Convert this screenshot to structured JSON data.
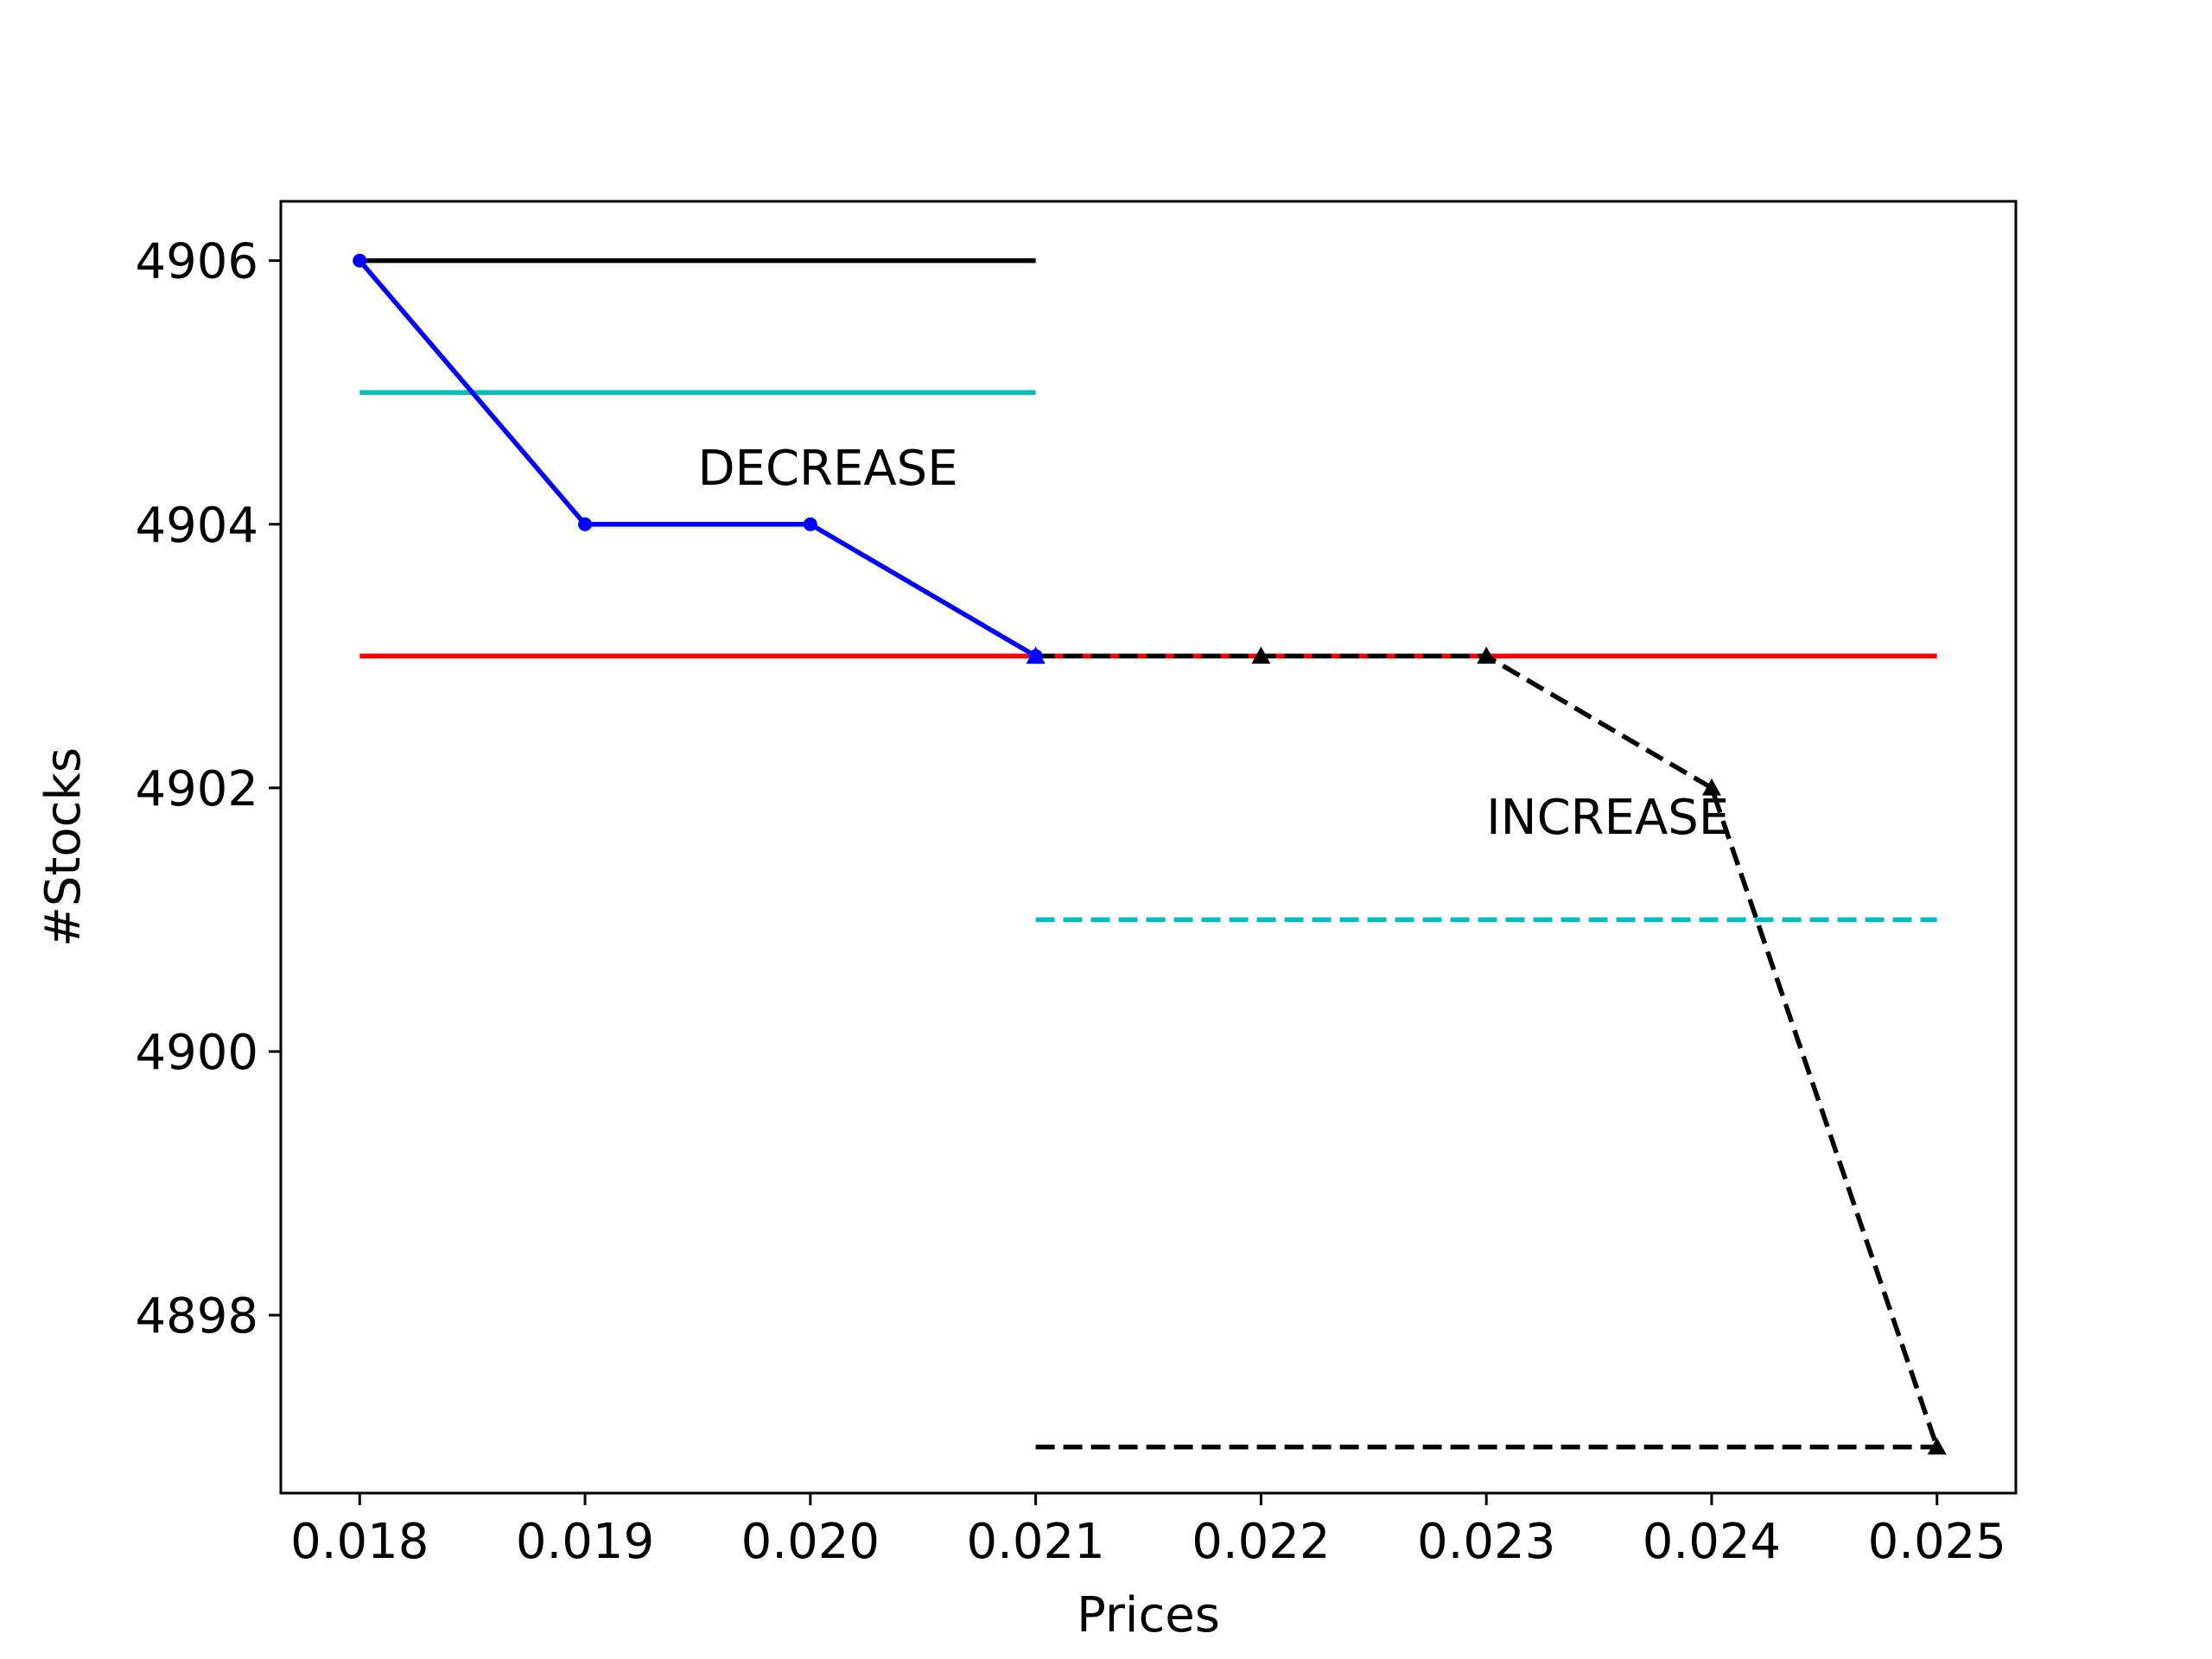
{
  "chart_data": {
    "type": "line",
    "xlabel": "Prices",
    "ylabel": "#Stocks",
    "xlim": [
      0.01765,
      0.02535
    ],
    "ylim": [
      4896.65,
      4906.45
    ],
    "x_ticks": [
      {
        "value": 0.018,
        "label": "0.018"
      },
      {
        "value": 0.019,
        "label": "0.019"
      },
      {
        "value": 0.02,
        "label": "0.020"
      },
      {
        "value": 0.021,
        "label": "0.021"
      },
      {
        "value": 0.022,
        "label": "0.022"
      },
      {
        "value": 0.023,
        "label": "0.023"
      },
      {
        "value": 0.024,
        "label": "0.024"
      },
      {
        "value": 0.025,
        "label": "0.025"
      }
    ],
    "y_ticks": [
      {
        "value": 4898,
        "label": "4898"
      },
      {
        "value": 4900,
        "label": "4900"
      },
      {
        "value": 4902,
        "label": "4902"
      },
      {
        "value": 4904,
        "label": "4904"
      },
      {
        "value": 4906,
        "label": "4906"
      }
    ],
    "grid": false,
    "series": [
      {
        "x": [
          0.018,
          0.021
        ],
        "y": [
          4906,
          4906
        ],
        "color": "#000000",
        "dash": "solid",
        "marker": "none"
      },
      {
        "x": [
          0.018,
          0.021
        ],
        "y": [
          4905,
          4905
        ],
        "color": "#00bfbf",
        "dash": "solid",
        "marker": "none"
      },
      {
        "x": [
          0.018,
          0.025
        ],
        "y": [
          4903,
          4903
        ],
        "color": "#ff0000",
        "dash": "solid",
        "marker": "none"
      },
      {
        "x": [
          0.018,
          0.019,
          0.02,
          0.021
        ],
        "y": [
          4906,
          4904,
          4904,
          4903
        ],
        "color": "#0000ff",
        "dash": "solid",
        "marker": "dot"
      },
      {
        "x": [
          0.021,
          0.025
        ],
        "y": [
          4901,
          4901
        ],
        "color": "#00bfbf",
        "dash": "dashed",
        "marker": "none"
      },
      {
        "x": [
          0.021,
          0.025
        ],
        "y": [
          4897,
          4897
        ],
        "color": "#000000",
        "dash": "dashed",
        "marker": "none"
      },
      {
        "x": [
          0.021,
          0.022,
          0.023,
          0.024,
          0.025
        ],
        "y": [
          4903,
          4903,
          4903,
          4902,
          4897
        ],
        "color": "#000000",
        "dash": "dashed",
        "marker": "triangle"
      }
    ],
    "markers_extra": [
      {
        "x": 0.021,
        "y": 4903,
        "color": "#0000ff",
        "marker": "triangle"
      }
    ],
    "annotations": [
      {
        "text": "DECREASE",
        "x": 0.0195,
        "y": 4904.3
      },
      {
        "text": "INCREASE",
        "x": 0.023,
        "y": 4901.65
      }
    ]
  }
}
